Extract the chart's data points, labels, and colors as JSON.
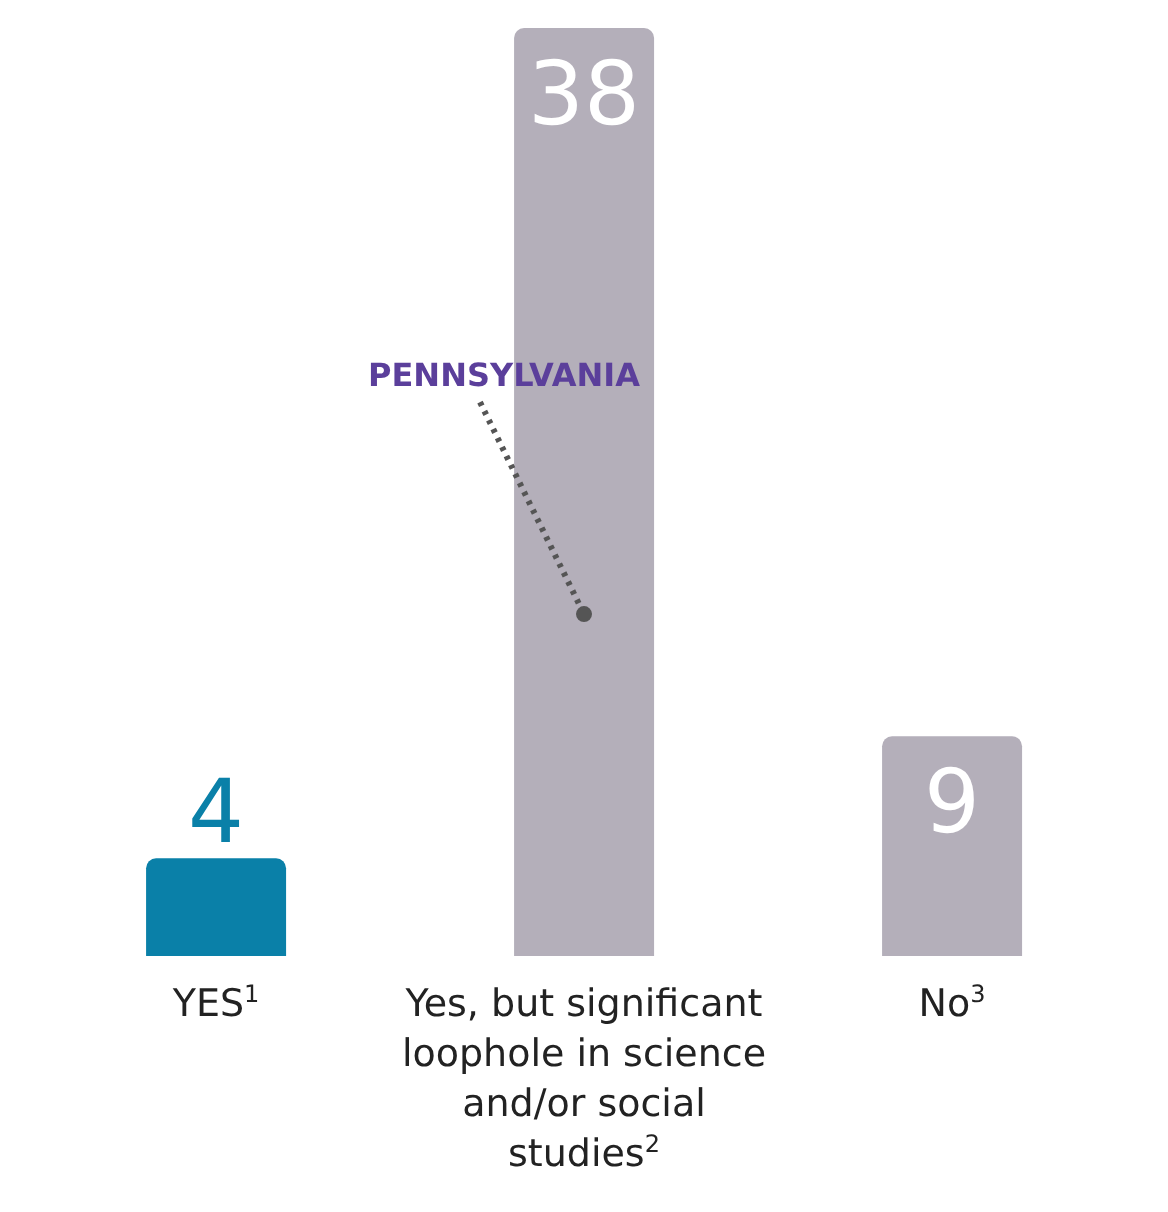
{
  "chart_data": {
    "type": "bar",
    "categories": [
      "YES$^{1}$",
      "Yes, but significant loophole in science and/or social studies$^{2}$",
      "No$^{3}$"
    ],
    "values": [
      4,
      38,
      9
    ],
    "colors": [
      "#0a80a8",
      "#b4afba",
      "#b4afba"
    ],
    "data_labels": true,
    "annotations": [
      {
        "text": "PENNSYLVANIA",
        "x": "Yes, but significant loophole in science and/or social studies$^{2}$",
        "y": 14
      }
    ]
  }
}
